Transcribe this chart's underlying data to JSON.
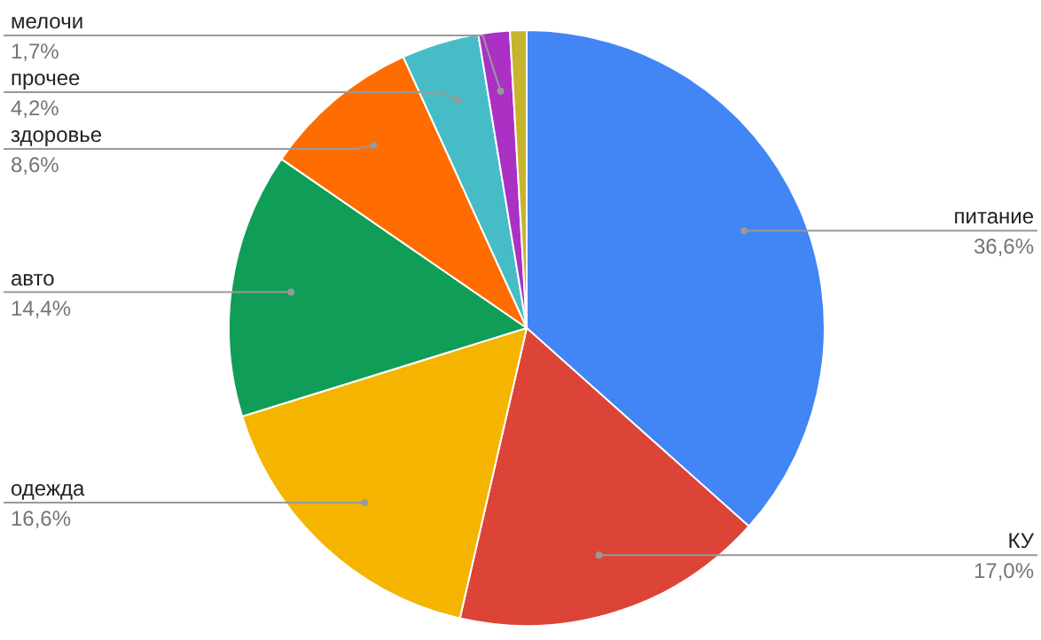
{
  "chart_data": {
    "type": "pie",
    "categories": [
      "питание",
      "КУ",
      "одежда",
      "авто",
      "здоровье",
      "прочее",
      "мелочи",
      null
    ],
    "values": [
      36.6,
      17.0,
      16.6,
      14.4,
      8.6,
      4.2,
      1.7,
      0.9
    ],
    "value_labels": [
      "36,6%",
      "17,0%",
      "16,6%",
      "14,4%",
      "8,6%",
      "4,2%",
      "1,7%",
      null
    ],
    "colors": [
      "#4285f4",
      "#db4437",
      "#f4b400",
      "#0f9d58",
      "#ff6d00",
      "#46bdc6",
      "#ab30c4",
      "#c6b42c"
    ]
  }
}
